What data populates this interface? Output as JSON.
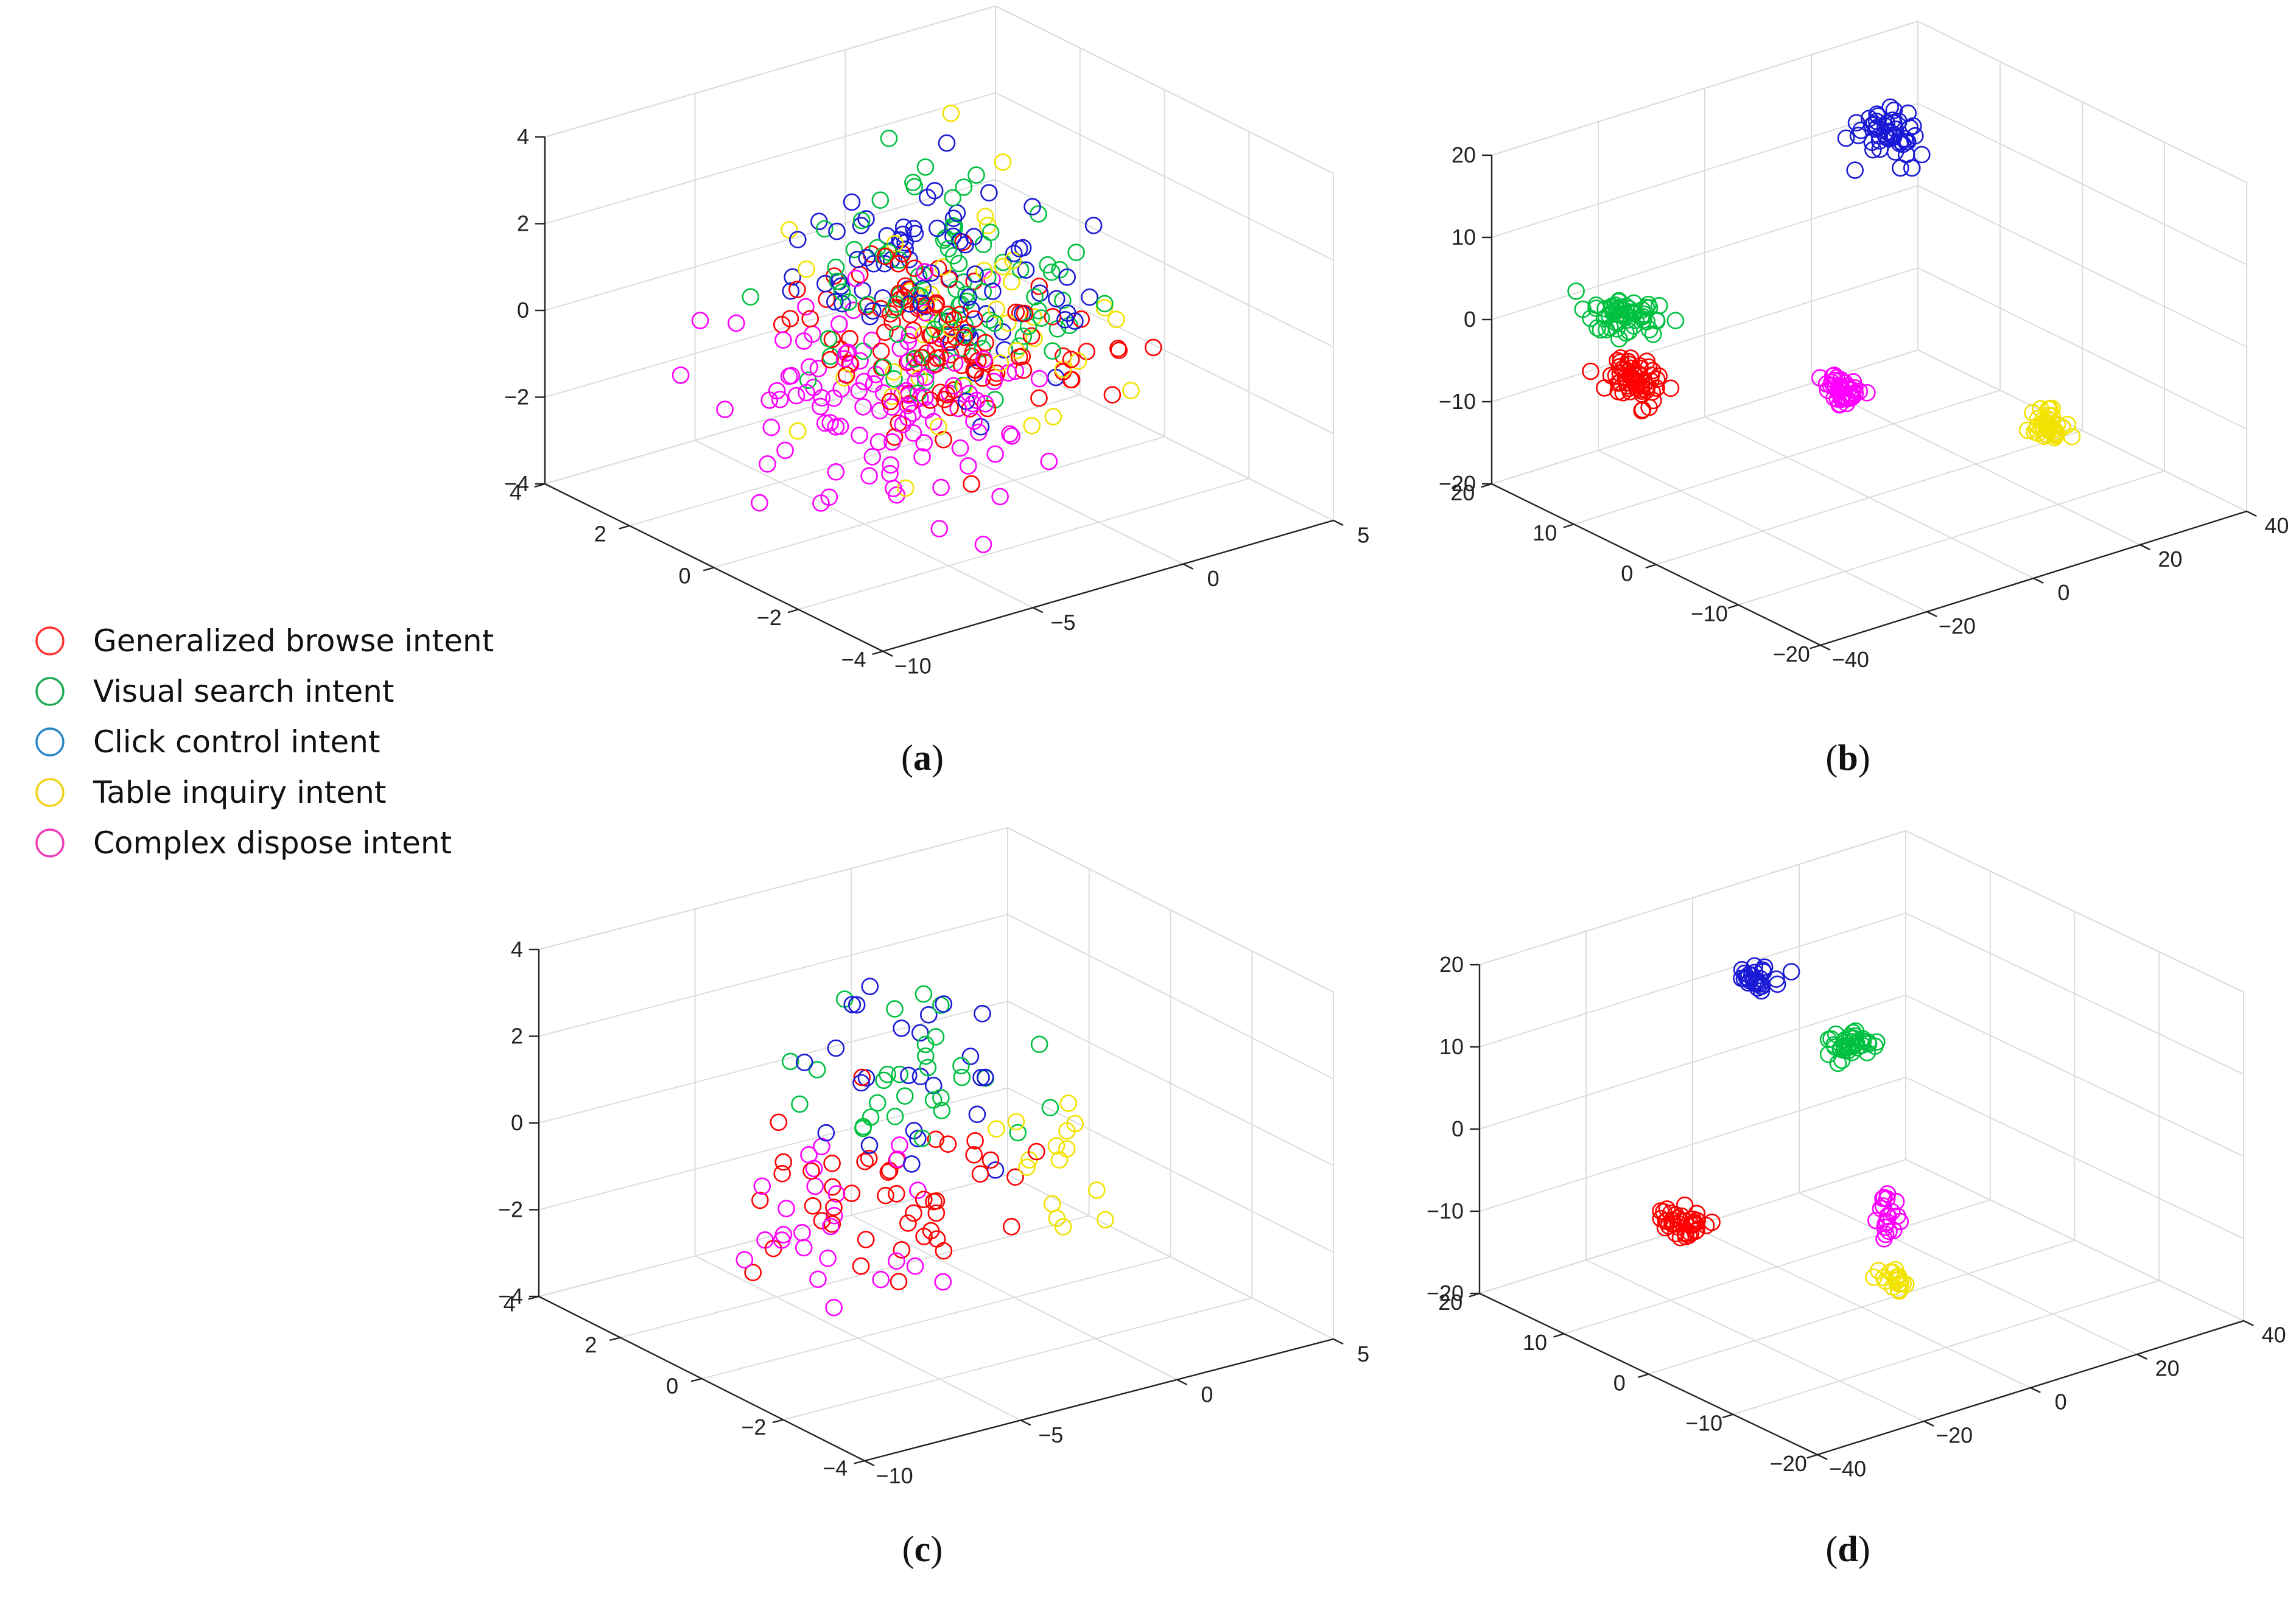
{
  "legend": {
    "items": [
      {
        "label": "Generalized browse intent",
        "color": "#ff3333"
      },
      {
        "label": "Visual search intent",
        "color": "#22aa55"
      },
      {
        "label": "Click control intent",
        "color": "#2a86c4"
      },
      {
        "label": "Table inquiry intent",
        "color": "#f2d21a"
      },
      {
        "label": "Complex dispose intent",
        "color": "#ee3cb8"
      }
    ],
    "marker": "open circle"
  },
  "panels": [
    {
      "label": "a"
    },
    {
      "label": "b"
    },
    {
      "label": "c"
    },
    {
      "label": "d"
    }
  ],
  "chart_data": [
    {
      "panel": "a",
      "type": "scatter",
      "dimensions": 3,
      "marker": "open circle",
      "grid": true,
      "x_ticks": [
        "−10",
        "−5",
        "0",
        "5"
      ],
      "y_ticks": [
        "−4",
        "−2",
        "0",
        "2",
        "4"
      ],
      "z_ticks": [
        "−4",
        "−2",
        "0",
        "2",
        "4"
      ],
      "xlim": [
        -10,
        5
      ],
      "ylim": [
        -4,
        4
      ],
      "zlim": [
        -4,
        4
      ],
      "series": [
        {
          "name": "Generalized browse intent",
          "color": "#ff0000",
          "center": [
            -2.5,
            0,
            -0.2
          ],
          "spread": [
            1.8,
            1.2,
            0.9
          ],
          "count": 110
        },
        {
          "name": "Visual search intent",
          "color": "#00c040",
          "center": [
            -1,
            1,
            0.1
          ],
          "spread": [
            1.8,
            1.3,
            1.0
          ],
          "count": 90
        },
        {
          "name": "Click control intent",
          "color": "#1a1ad6",
          "center": [
            -1.6,
            1,
            0.6
          ],
          "spread": [
            1.7,
            1.2,
            1.0
          ],
          "count": 80
        },
        {
          "name": "Table inquiry intent",
          "color": "#f2e200",
          "center": [
            -1,
            0.5,
            -0.6
          ],
          "spread": [
            2.2,
            1.8,
            1.4
          ],
          "count": 40
        },
        {
          "name": "Complex dispose intent",
          "color": "#ff00ff",
          "center": [
            -6,
            -1.2,
            -0.3
          ],
          "spread": [
            1.8,
            1.3,
            1.0
          ],
          "count": 110
        }
      ]
    },
    {
      "panel": "b",
      "type": "scatter",
      "dimensions": 3,
      "marker": "open circle",
      "grid": true,
      "x_ticks": [
        "−40",
        "−20",
        "0",
        "20",
        "40"
      ],
      "y_ticks": [
        "−20",
        "−10",
        "0",
        "10",
        "20"
      ],
      "z_ticks": [
        "−20",
        "−10",
        "0",
        "10",
        "20"
      ],
      "xlim": [
        -40,
        40
      ],
      "ylim": [
        -20,
        20
      ],
      "zlim": [
        -20,
        20
      ],
      "series": [
        {
          "name": "Generalized browse intent",
          "color": "#ff0000",
          "center": [
            -32,
            8,
            -3
          ],
          "spread": [
            1.5,
            1.5,
            1.3
          ],
          "count": 60
        },
        {
          "name": "Visual search intent",
          "color": "#00c040",
          "center": [
            -27,
            12,
            2
          ],
          "spread": [
            2.5,
            1.5,
            0.6
          ],
          "count": 60
        },
        {
          "name": "Click control intent",
          "color": "#1a1ad6",
          "center": [
            27,
            15,
            11
          ],
          "spread": [
            2,
            1.5,
            1.5
          ],
          "count": 50
        },
        {
          "name": "Table inquiry intent",
          "color": "#f2e200",
          "center": [
            22,
            -8,
            -12
          ],
          "spread": [
            1.5,
            1.0,
            0.6
          ],
          "count": 40
        },
        {
          "name": "Complex dispose intent",
          "color": "#ff00ff",
          "center": [
            -5,
            0,
            -6
          ],
          "spread": [
            1.0,
            1.0,
            0.9
          ],
          "count": 40
        }
      ]
    },
    {
      "panel": "c",
      "type": "scatter",
      "dimensions": 3,
      "marker": "open circle",
      "grid": true,
      "x_ticks": [
        "−10",
        "−5",
        "0",
        "5"
      ],
      "y_ticks": [
        "−4",
        "−2",
        "0",
        "2",
        "4"
      ],
      "z_ticks": [
        "−4",
        "−2",
        "0",
        "2",
        "4"
      ],
      "xlim": [
        -10,
        5
      ],
      "ylim": [
        -4,
        4
      ],
      "zlim": [
        -4,
        4
      ],
      "series": [
        {
          "name": "Generalized browse intent",
          "color": "#ff0000",
          "center": [
            -4,
            0,
            -0.6
          ],
          "spread": [
            1.8,
            1.0,
            0.9
          ],
          "count": 45
        },
        {
          "name": "Visual search intent",
          "color": "#00c040",
          "center": [
            -1.5,
            1.5,
            0.6
          ],
          "spread": [
            1.5,
            1.0,
            0.8
          ],
          "count": 30
        },
        {
          "name": "Click control intent",
          "color": "#1a1ad6",
          "center": [
            -1.5,
            1.5,
            0.8
          ],
          "spread": [
            1.5,
            1.0,
            1.0
          ],
          "count": 25
        },
        {
          "name": "Table inquiry intent",
          "color": "#f2e200",
          "center": [
            1.5,
            0,
            -1.2
          ],
          "spread": [
            1.2,
            0.8,
            0.9
          ],
          "count": 15
        },
        {
          "name": "Complex dispose intent",
          "color": "#ff00ff",
          "center": [
            -7,
            -1,
            -0.8
          ],
          "spread": [
            1.5,
            0.8,
            1.1
          ],
          "count": 25
        }
      ]
    },
    {
      "panel": "d",
      "type": "scatter",
      "dimensions": 3,
      "marker": "open circle",
      "grid": true,
      "x_ticks": [
        "−40",
        "−20",
        "0",
        "20",
        "40"
      ],
      "y_ticks": [
        "−20",
        "−10",
        "0",
        "10",
        "20"
      ],
      "z_ticks": [
        "−20",
        "−10",
        "0",
        "10",
        "20"
      ],
      "xlim": [
        -40,
        40
      ],
      "ylim": [
        -20,
        20
      ],
      "zlim": [
        -20,
        20
      ],
      "series": [
        {
          "name": "Generalized browse intent",
          "color": "#ff0000",
          "center": [
            -33,
            0,
            -3
          ],
          "spread": [
            1.8,
            1.2,
            0.6
          ],
          "count": 40
        },
        {
          "name": "Visual search intent",
          "color": "#00c040",
          "center": [
            14,
            10,
            4
          ],
          "spread": [
            1.8,
            1.0,
            0.8
          ],
          "count": 40
        },
        {
          "name": "Click control intent",
          "color": "#1a1ad6",
          "center": [
            4,
            15,
            12
          ],
          "spread": [
            1.5,
            1.0,
            0.6
          ],
          "count": 30
        },
        {
          "name": "Table inquiry intent",
          "color": "#f2e200",
          "center": [
            3,
            -2,
            -16
          ],
          "spread": [
            1.0,
            0.8,
            0.5
          ],
          "count": 20
        },
        {
          "name": "Complex dispose intent",
          "color": "#ff00ff",
          "center": [
            5,
            0,
            -10
          ],
          "spread": [
            0.8,
            0.6,
            1.4
          ],
          "count": 20
        }
      ]
    }
  ]
}
